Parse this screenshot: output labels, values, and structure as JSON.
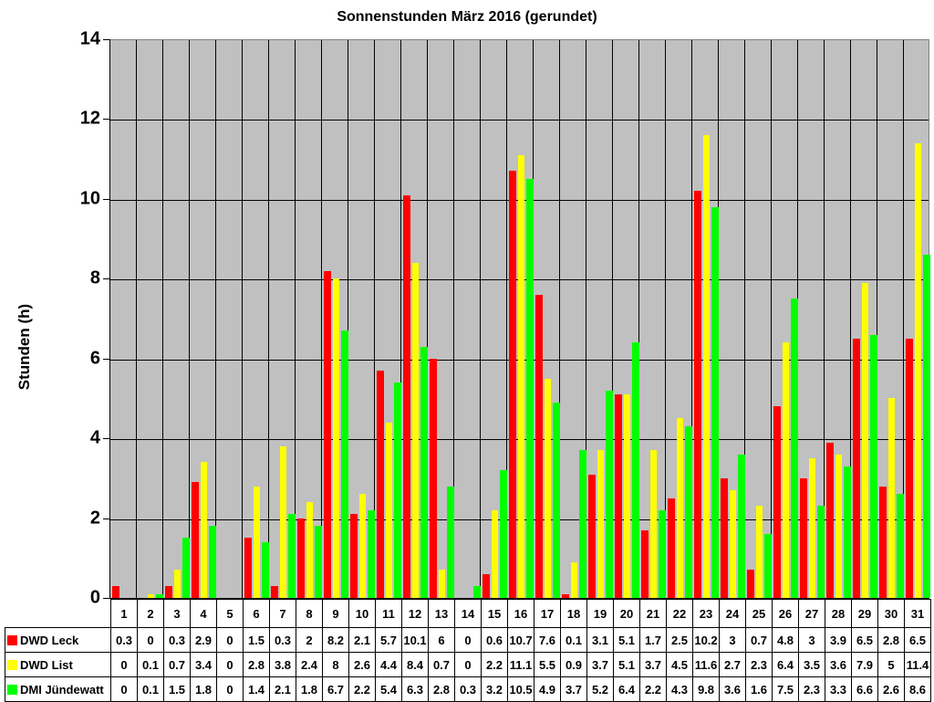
{
  "chart_data": {
    "type": "bar",
    "title": "Sonnenstunden März 2016 (gerundet)",
    "xlabel": "",
    "ylabel": "Stunden (h)",
    "ylim": [
      0,
      14
    ],
    "yticks": [
      0,
      2,
      4,
      6,
      8,
      10,
      12,
      14
    ],
    "grid": true,
    "legend_position": "data-table",
    "categories": [
      "1",
      "2",
      "3",
      "4",
      "5",
      "6",
      "7",
      "8",
      "9",
      "10",
      "11",
      "12",
      "13",
      "14",
      "15",
      "16",
      "17",
      "18",
      "19",
      "20",
      "21",
      "22",
      "23",
      "24",
      "25",
      "26",
      "27",
      "28",
      "29",
      "30",
      "31"
    ],
    "series": [
      {
        "name": "DWD Leck",
        "color": "#ff0000",
        "values": [
          0.3,
          0,
          0.3,
          2.9,
          0,
          1.5,
          0.3,
          2,
          8.2,
          2.1,
          5.7,
          10.1,
          6,
          0,
          0.6,
          10.7,
          7.6,
          0.1,
          3.1,
          5.1,
          1.7,
          2.5,
          10.2,
          3,
          0.7,
          4.8,
          3,
          3.9,
          6.5,
          2.8,
          6.5
        ]
      },
      {
        "name": "DWD List",
        "color": "#ffff00",
        "values": [
          0,
          0.1,
          0.7,
          3.4,
          0,
          2.8,
          3.8,
          2.4,
          8,
          2.6,
          4.4,
          8.4,
          0.7,
          0,
          2.2,
          11.1,
          5.5,
          0.9,
          3.7,
          5.1,
          3.7,
          4.5,
          11.6,
          2.7,
          2.3,
          6.4,
          3.5,
          3.6,
          7.9,
          5,
          11.4
        ]
      },
      {
        "name": "DMI Jündewatt",
        "color": "#00ff00",
        "values": [
          0,
          0.1,
          1.5,
          1.8,
          0,
          1.4,
          2.1,
          1.8,
          6.7,
          2.2,
          5.4,
          6.3,
          2.8,
          0.3,
          3.2,
          10.5,
          4.9,
          3.7,
          5.2,
          6.4,
          2.2,
          4.3,
          9.8,
          3.6,
          1.6,
          7.5,
          2.3,
          3.3,
          6.6,
          2.6,
          8.6
        ]
      }
    ]
  }
}
